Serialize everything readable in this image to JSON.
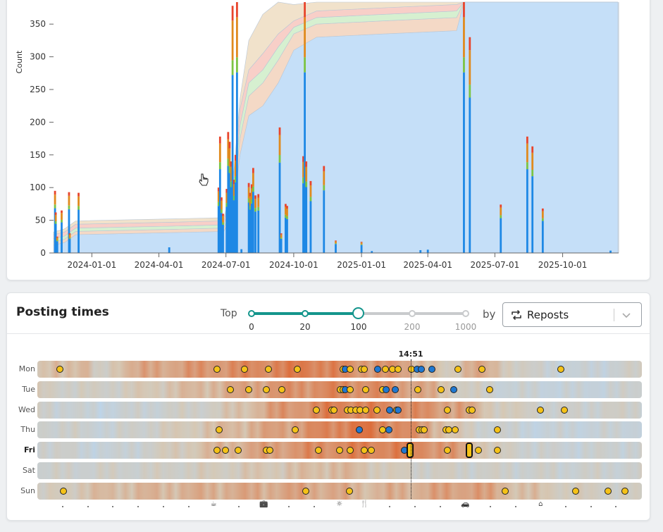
{
  "chart_data": {
    "type": "bar",
    "ylabel": "Count",
    "yticks": [
      0,
      50,
      100,
      150,
      200,
      250,
      300,
      350
    ],
    "ylim": [
      0,
      390
    ],
    "xlim": [
      "2023-11-10",
      "2025-12-15"
    ],
    "xticks": [
      "2024-01-01",
      "2024-04-01",
      "2024-07-01",
      "2024-10-01",
      "2025-01-01",
      "2025-04-01",
      "2025-07-01",
      "2025-10-01"
    ],
    "colors": {
      "area_main": "#c5dff8",
      "area_orange": "#f4d9c6",
      "area_green": "#d6f0d0",
      "area_red": "#f8cfc8",
      "area_tan": "#f1e2cb",
      "bar": "#1e88e5",
      "bar_orange": "#e08a1e",
      "bar_green": "#7cc444",
      "bar_red": "#e8452c"
    },
    "cumulative_area": [
      {
        "date": "2023-11-10",
        "main": 12,
        "orange": 5,
        "green": 5,
        "red": 6,
        "tan": 4
      },
      {
        "date": "2023-11-25",
        "main": 16,
        "orange": 5,
        "green": 5,
        "red": 6,
        "tan": 5
      },
      {
        "date": "2023-12-10",
        "main": 28,
        "orange": 5,
        "green": 5,
        "red": 6,
        "tan": 5
      },
      {
        "date": "2024-04-15",
        "main": 31,
        "orange": 5,
        "green": 5,
        "red": 6,
        "tan": 5
      },
      {
        "date": "2024-06-28",
        "main": 33,
        "orange": 5,
        "green": 5,
        "red": 6,
        "tan": 5
      },
      {
        "date": "2024-07-10",
        "main": 60,
        "orange": 12,
        "green": 10,
        "red": 12,
        "tan": 8
      },
      {
        "date": "2024-07-20",
        "main": 150,
        "orange": 25,
        "green": 20,
        "red": 25,
        "tan": 16
      },
      {
        "date": "2024-08-01",
        "main": 210,
        "orange": 30,
        "green": 20,
        "red": 20,
        "tan": 45
      },
      {
        "date": "2024-08-20",
        "main": 225,
        "orange": 35,
        "green": 20,
        "red": 25,
        "tan": 60
      },
      {
        "date": "2024-09-10",
        "main": 260,
        "orange": 35,
        "green": 20,
        "red": 20,
        "tan": 60
      },
      {
        "date": "2024-10-01",
        "main": 310,
        "orange": 25,
        "green": 10,
        "red": 10,
        "tan": 25
      },
      {
        "date": "2024-11-01",
        "main": 330,
        "orange": 20,
        "green": 10,
        "red": 10,
        "tan": 20
      },
      {
        "date": "2025-02-01",
        "main": 335,
        "orange": 20,
        "green": 10,
        "red": 10,
        "tan": 20
      },
      {
        "date": "2025-05-10",
        "main": 340,
        "orange": 20,
        "green": 10,
        "red": 10,
        "tan": 20
      },
      {
        "date": "2025-05-20",
        "main": 400,
        "orange": 0,
        "green": 0,
        "red": 0,
        "tan": 0
      },
      {
        "date": "2025-12-15",
        "main": 400,
        "orange": 0,
        "green": 0,
        "red": 0,
        "tan": 0
      }
    ],
    "bars": [
      {
        "date": "2023-11-12",
        "value": 95
      },
      {
        "date": "2023-11-13",
        "value": 62
      },
      {
        "date": "2023-11-15",
        "value": 25
      },
      {
        "date": "2023-11-21",
        "value": 65
      },
      {
        "date": "2023-12-01",
        "value": 93
      },
      {
        "date": "2023-12-02",
        "value": 30
      },
      {
        "date": "2023-12-14",
        "value": 92
      },
      {
        "date": "2024-04-15",
        "value": 12
      },
      {
        "date": "2024-06-21",
        "value": 100
      },
      {
        "date": "2024-06-23",
        "value": 178
      },
      {
        "date": "2024-06-25",
        "value": 85
      },
      {
        "date": "2024-06-27",
        "value": 60
      },
      {
        "date": "2024-07-02",
        "value": 98
      },
      {
        "date": "2024-07-04",
        "value": 185
      },
      {
        "date": "2024-07-06",
        "value": 170
      },
      {
        "date": "2024-07-08",
        "value": 140
      },
      {
        "date": "2024-07-10",
        "value": 378
      },
      {
        "date": "2024-07-12",
        "value": 112
      },
      {
        "date": "2024-07-14",
        "value": 150
      },
      {
        "date": "2024-07-16",
        "value": 400
      },
      {
        "date": "2024-07-22",
        "value": 8
      },
      {
        "date": "2024-08-01",
        "value": 107
      },
      {
        "date": "2024-08-03",
        "value": 92
      },
      {
        "date": "2024-08-05",
        "value": 105
      },
      {
        "date": "2024-08-07",
        "value": 130
      },
      {
        "date": "2024-08-10",
        "value": 88
      },
      {
        "date": "2024-08-14",
        "value": 90
      },
      {
        "date": "2024-09-12",
        "value": 192
      },
      {
        "date": "2024-09-14",
        "value": 30
      },
      {
        "date": "2024-09-20",
        "value": 75
      },
      {
        "date": "2024-09-22",
        "value": 72
      },
      {
        "date": "2024-10-14",
        "value": 148
      },
      {
        "date": "2024-10-16",
        "value": 400
      },
      {
        "date": "2024-10-18",
        "value": 140
      },
      {
        "date": "2024-10-24",
        "value": 110
      },
      {
        "date": "2024-11-11",
        "value": 133
      },
      {
        "date": "2024-11-27",
        "value": 19
      },
      {
        "date": "2025-01-01",
        "value": 17
      },
      {
        "date": "2025-01-15",
        "value": 4
      },
      {
        "date": "2025-03-22",
        "value": 6
      },
      {
        "date": "2025-04-01",
        "value": 7
      },
      {
        "date": "2025-05-20",
        "value": 395
      },
      {
        "date": "2025-05-28",
        "value": 330
      },
      {
        "date": "2025-07-09",
        "value": 74
      },
      {
        "date": "2025-08-14",
        "value": 178
      },
      {
        "date": "2025-08-21",
        "value": 163
      },
      {
        "date": "2025-09-04",
        "value": 68
      },
      {
        "date": "2025-12-05",
        "value": 5
      }
    ]
  },
  "posting": {
    "title": "Posting times",
    "top_label": "Top",
    "slider_ticks": [
      "0",
      "20",
      "100",
      "200",
      "1000"
    ],
    "slider_selected": "100",
    "by_label": "by",
    "select_value": "Reposts",
    "now_label": "14:51",
    "days": [
      "Mon",
      "Tue",
      "Wed",
      "Thu",
      "Fri",
      "Sat",
      "Sun"
    ],
    "current_day": "Fri",
    "hour_icons": [
      "coffee-icon",
      "briefcase-icon",
      "sun-icon",
      "fork-knife-icon",
      "car-icon",
      "home-icon"
    ]
  }
}
